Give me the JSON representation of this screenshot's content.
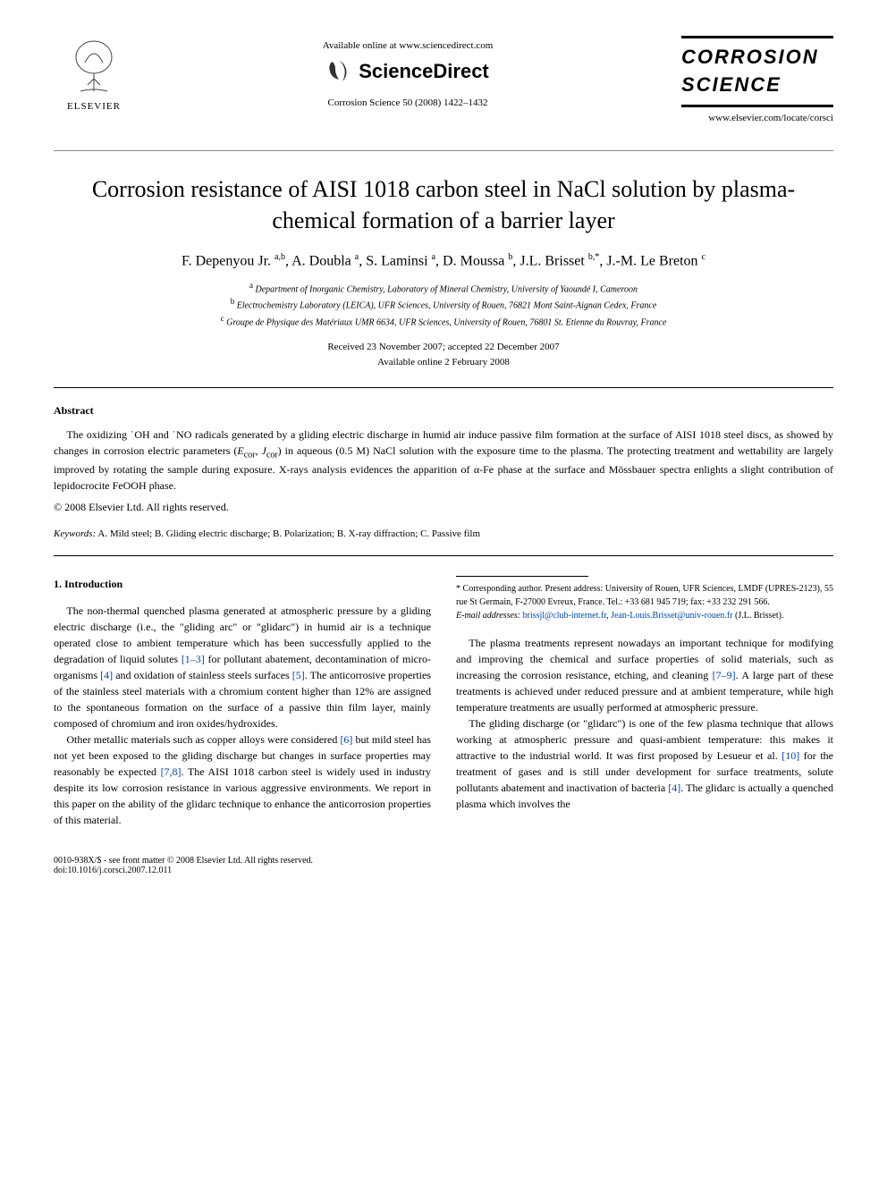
{
  "header": {
    "elsevier_label": "ELSEVIER",
    "available_online": "Available online at www.sciencedirect.com",
    "sciencedirect": "ScienceDirect",
    "journal_ref": "Corrosion Science 50 (2008) 1422–1432",
    "journal_title_line1": "CORROSION",
    "journal_title_line2": "SCIENCE",
    "journal_url": "www.elsevier.com/locate/corsci"
  },
  "article": {
    "title": "Corrosion resistance of AISI 1018 carbon steel in NaCl solution by plasma-chemical formation of a barrier layer",
    "authors_html": "F. Depenyou Jr. <sup>a,b</sup>, A. Doubla <sup>a</sup>, S. Laminsi <sup>a</sup>, D. Moussa <sup>b</sup>, J.L. Brisset <sup>b,*</sup>, J.-M. Le Breton <sup>c</sup>",
    "affiliations": {
      "a": "Department of Inorganic Chemistry, Laboratory of Mineral Chemistry, University of Yaoundé I, Cameroon",
      "b": "Electrochemistry Laboratory (LEICA), UFR Sciences, University of Rouen, 76821 Mont Saint-Aignan Cedex, France",
      "c": "Groupe de Physique des Matériaux UMR 6634, UFR Sciences, University of Rouen, 76801 St. Etienne du Rouvray, France"
    },
    "dates": {
      "received_accepted": "Received 23 November 2007; accepted 22 December 2007",
      "online": "Available online 2 February 2008"
    }
  },
  "abstract": {
    "heading": "Abstract",
    "body": "The oxidizing ˙OH and ˙NO radicals generated by a gliding electric discharge in humid air induce passive film formation at the surface of AISI 1018 steel discs, as showed by changes in corrosion electric parameters (Ecor, Jcor) in aqueous (0.5 M) NaCl solution with the exposure time to the plasma. The protecting treatment and wettability are largely improved by rotating the sample during exposure. X-rays analysis evidences the apparition of α-Fe phase at the surface and Mössbauer spectra enlights a slight contribution of lepidocrocite FeOOH phase.",
    "copyright": "© 2008 Elsevier Ltd. All rights reserved."
  },
  "keywords": {
    "label": "Keywords:",
    "text": " A. Mild steel; B. Gliding electric discharge; B. Polarization; B. X-ray diffraction; C. Passive film"
  },
  "introduction": {
    "heading": "1. Introduction",
    "p1_a": "The non-thermal quenched plasma generated at atmospheric pressure by a gliding electric discharge (i.e., the \"gliding arc\" or \"glidarc\") in humid air is a technique operated close to ambient temperature which has been successfully applied to the degradation of liquid solutes ",
    "ref1": "[1–3]",
    "p1_b": " for pollutant abatement, decontamination of micro-organisms ",
    "ref2": "[4]",
    "p1_c": " and oxidation of stainless steels surfaces ",
    "ref3": "[5]",
    "p1_d": ". The anticorrosive properties of the stainless steel materials with a chromium content higher than 12% are assigned to the spontaneous formation on the surface of a passive thin film layer, mainly composed of chromium and iron oxides/hydroxides.",
    "p2_a": "Other metallic materials such as copper alloys were considered ",
    "ref4": "[6]",
    "p2_b": " but mild steel has not yet been exposed to the gliding discharge but changes in surface properties may reasonably be expected ",
    "ref5": "[7,8]",
    "p2_c": ". The AISI 1018 carbon steel is widely used in industry despite its low corrosion resistance in various aggressive environments. We report in this paper on the ability of the glidarc technique to enhance the anticorrosion properties of this material.",
    "p3_a": "The plasma treatments represent nowadays an important technique for modifying and improving the chemical and surface properties of solid materials, such as increasing the corrosion resistance, etching, and cleaning ",
    "ref6": "[7–9]",
    "p3_b": ". A large part of these treatments is achieved under reduced pressure and at ambient temperature, while high temperature treatments are usually performed at atmospheric pressure.",
    "p4_a": "The gliding discharge (or \"glidarc\") is one of the few plasma technique that allows working at atmospheric pressure and quasi-ambient temperature: this makes it attractive to the industrial world. It was first proposed by Lesueur et al. ",
    "ref7": "[10]",
    "p4_b": " for the treatment of gases and is still under development for surface treatments, solute pollutants abatement and inactivation of bacteria ",
    "ref8": "[4]",
    "p4_c": ". The glidarc is actually a quenched plasma which involves the"
  },
  "footnote": {
    "corr_author": "* Corresponding author. Present address: University of Rouen, UFR Sciences, LMDF (UPRES-2123), 55 rue St Germain, F-27000 Evreux, France. Tel.: +33 681 945 719; fax: +33 232 291 566.",
    "email_label": "E-mail addresses:",
    "email1": "brissjl@club-internet.fr",
    "email_sep": ", ",
    "email2": "Jean-Louis.Brisset@univ-rouen.fr",
    "email_attr": " (J.L. Brisset)."
  },
  "footer": {
    "left1": "0010-938X/$ - see front matter © 2008 Elsevier Ltd. All rights reserved.",
    "left2": "doi:10.1016/j.corsci.2007.12.011"
  },
  "colors": {
    "link": "#0048a8",
    "text": "#000000",
    "bg": "#ffffff",
    "rule": "#000000"
  }
}
